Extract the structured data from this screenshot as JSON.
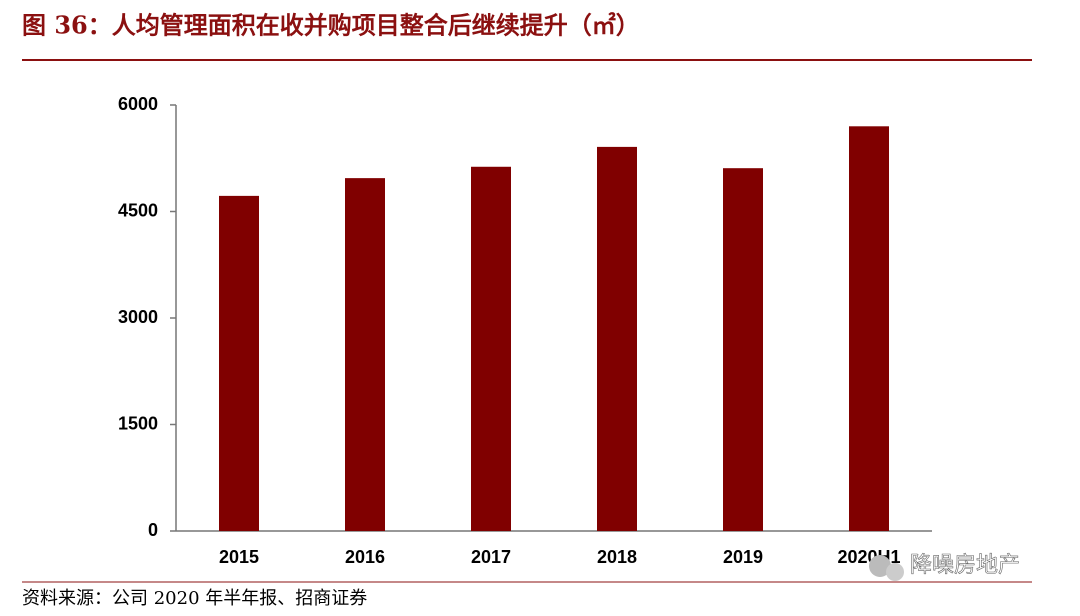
{
  "chart_data": {
    "type": "bar",
    "title": "图 36：人均管理面积在收并购项目整合后继续提升（㎡）",
    "categories": [
      "2015",
      "2016",
      "2017",
      "2018",
      "2019",
      "2020H1"
    ],
    "values": [
      4720,
      4970,
      5130,
      5410,
      5110,
      5700
    ],
    "color": "#800000",
    "ylim": [
      0,
      6000
    ],
    "yticks": [
      0,
      1500,
      3000,
      4500,
      6000
    ],
    "grid": false,
    "source": "资料来源：公司 2020 年半年报、招商证券",
    "watermark": "降噪房地产"
  }
}
